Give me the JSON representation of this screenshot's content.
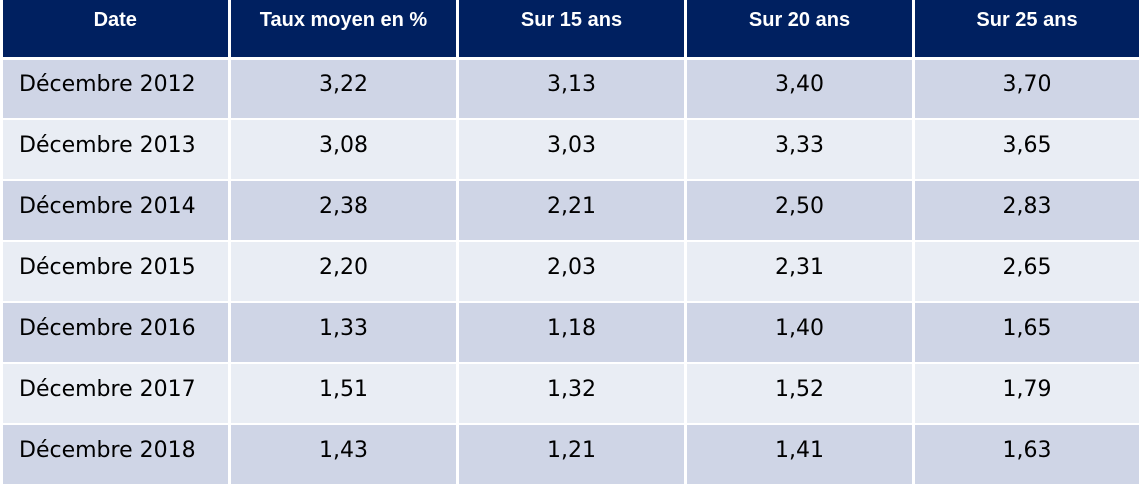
{
  "table": {
    "headers": [
      "Date",
      "Taux moyen en %",
      "Sur 15 ans",
      "Sur 20 ans",
      "Sur 25 ans"
    ],
    "rows": [
      [
        "Décembre 2012",
        "3,22",
        "3,13",
        "3,40",
        "3,70"
      ],
      [
        "Décembre 2013",
        "3,08",
        "3,03",
        "3,33",
        "3,65"
      ],
      [
        "Décembre 2014",
        "2,38",
        "2,21",
        "2,50",
        "2,83"
      ],
      [
        "Décembre 2015",
        "2,20",
        "2,03",
        "2,31",
        "2,65"
      ],
      [
        "Décembre 2016",
        "1,33",
        "1,18",
        "1,40",
        "1,65"
      ],
      [
        "Décembre 2017",
        "1,51",
        "1,32",
        "1,52",
        "1,79"
      ],
      [
        "Décembre 2018",
        "1,43",
        "1,21",
        "1,41",
        "1,63"
      ]
    ]
  },
  "colors": {
    "header_bg": "#002060",
    "row_dark": "#cfd5e6",
    "row_light": "#e9edf4"
  }
}
